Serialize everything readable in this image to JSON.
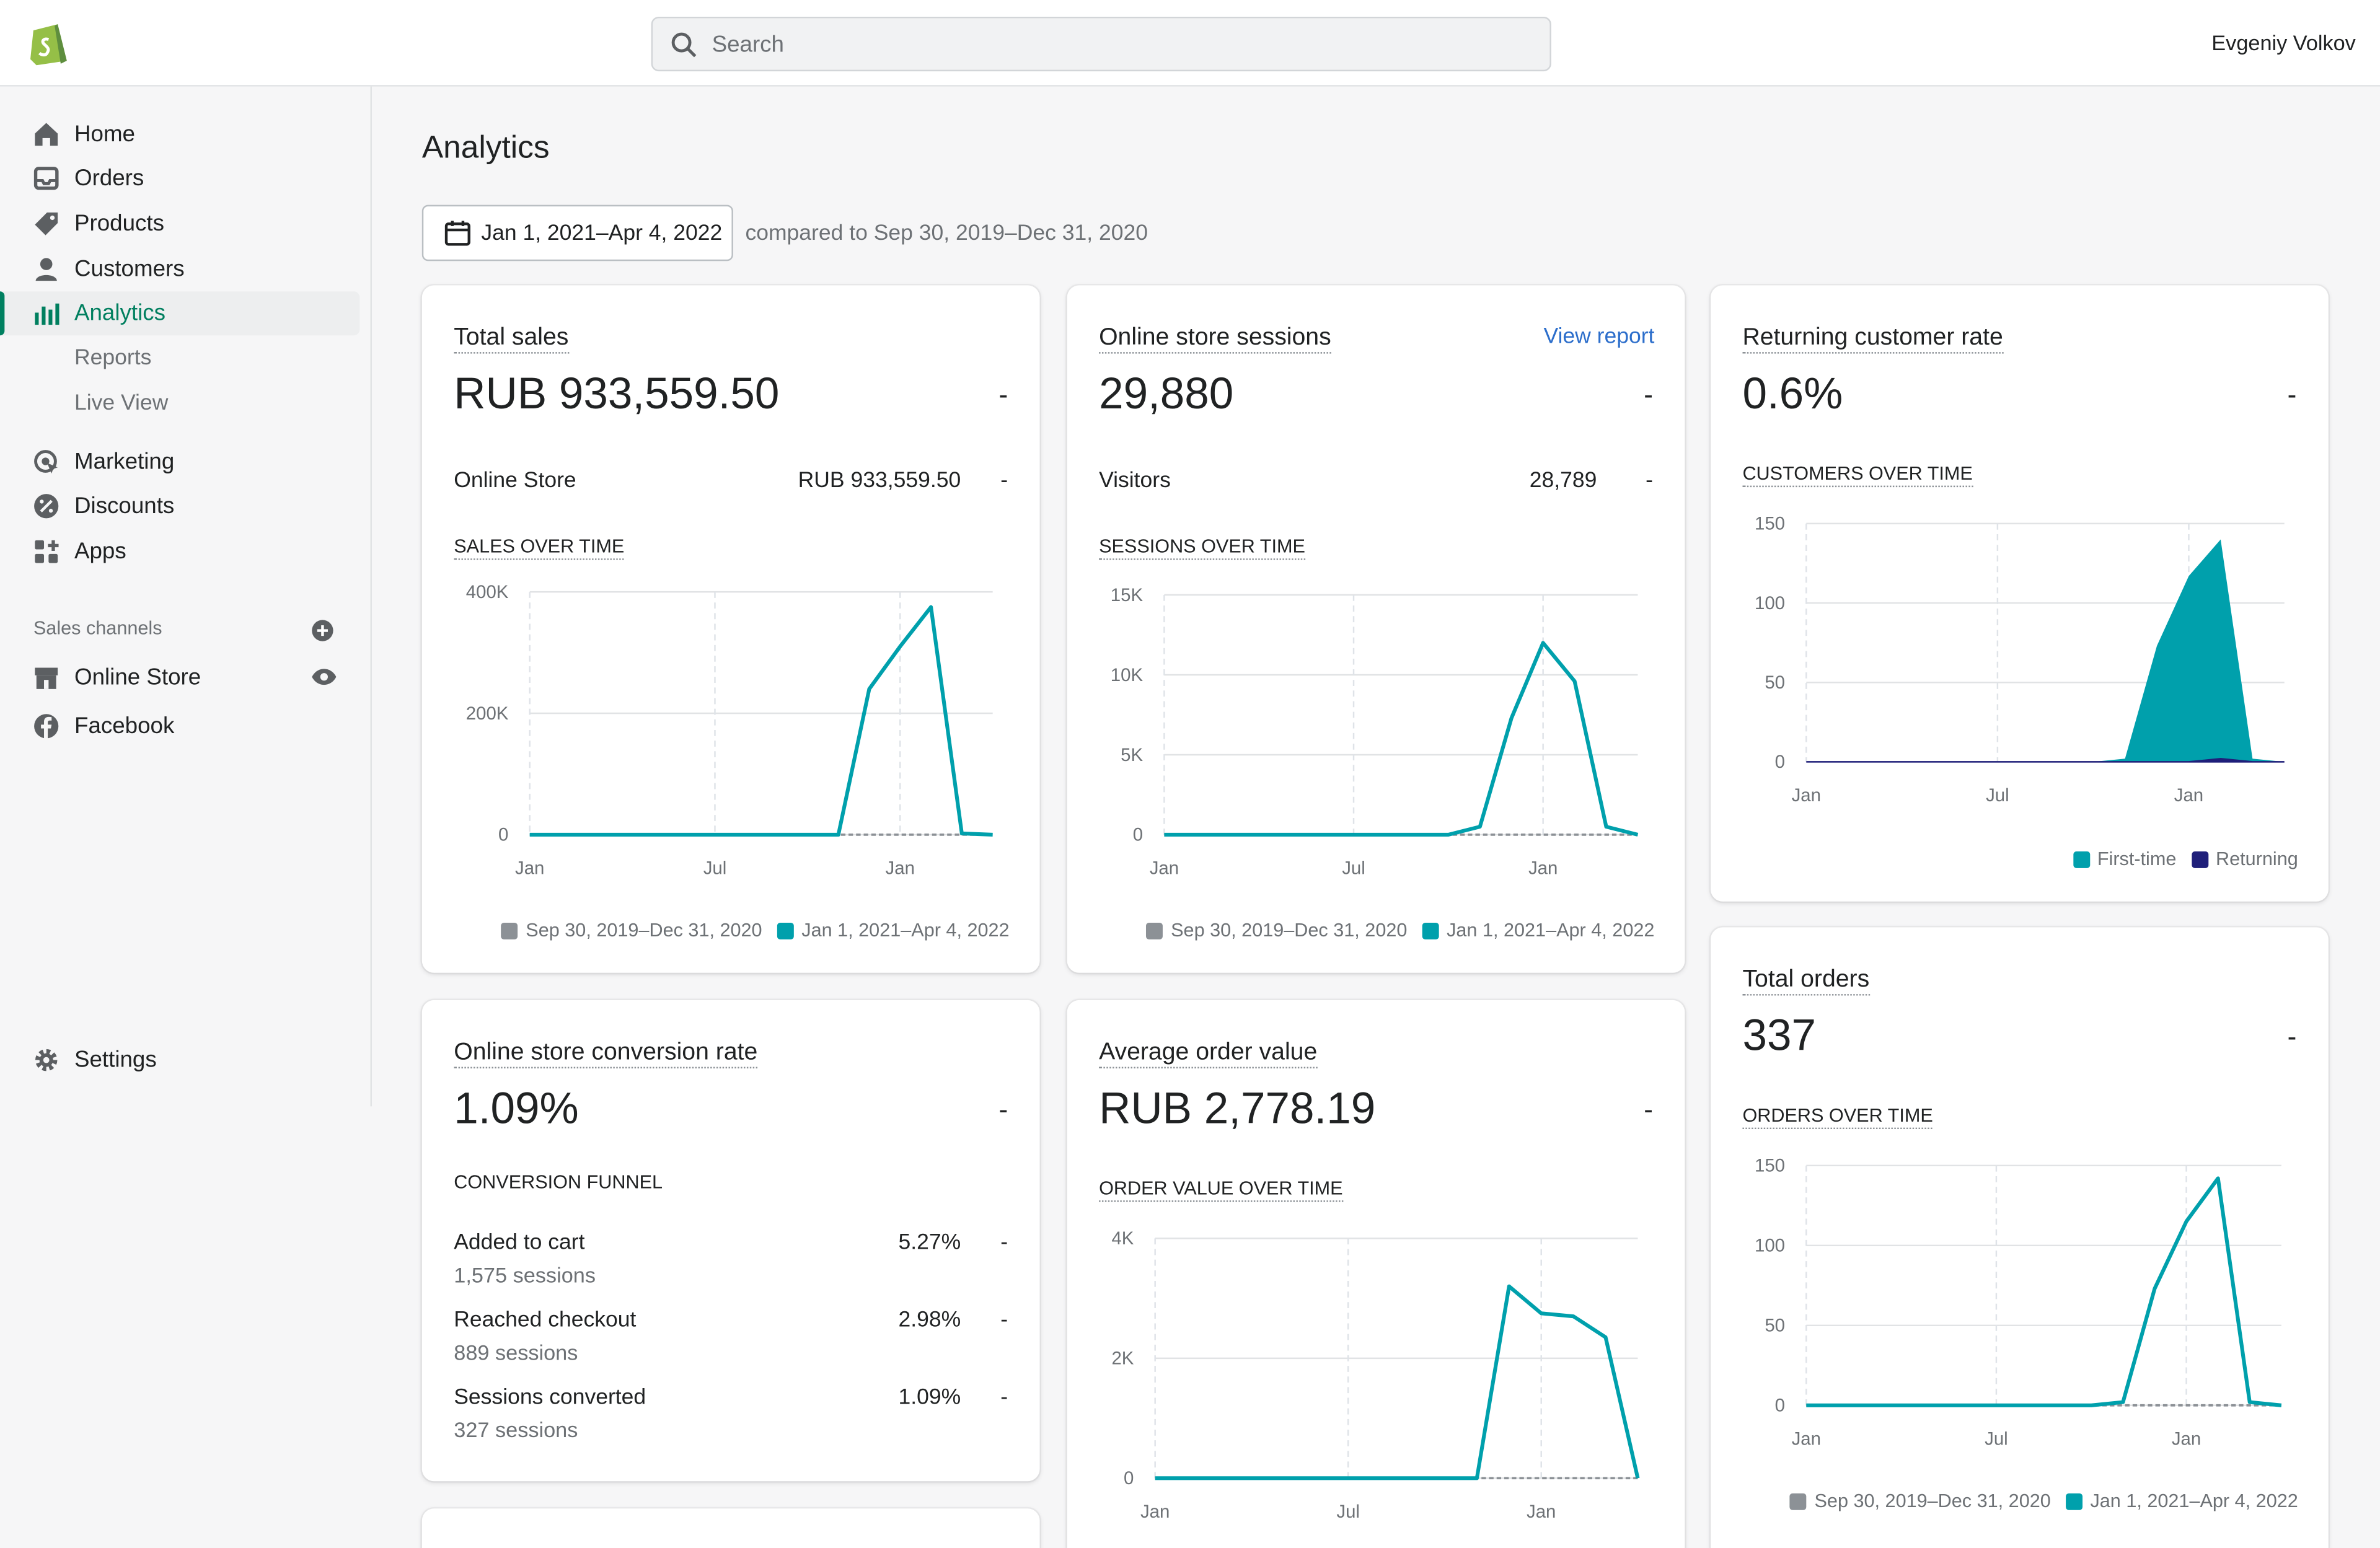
{
  "header": {
    "search_placeholder": "Search",
    "user_name": "Evgeniy Volkov"
  },
  "sidebar": {
    "items": [
      {
        "label": "Home",
        "icon": "home-icon"
      },
      {
        "label": "Orders",
        "icon": "orders-icon"
      },
      {
        "label": "Products",
        "icon": "tag-icon"
      },
      {
        "label": "Customers",
        "icon": "person-icon"
      },
      {
        "label": "Analytics",
        "icon": "bar-chart-icon",
        "active": true
      },
      {
        "label": "Reports"
      },
      {
        "label": "Live View"
      },
      {
        "label": "Marketing",
        "icon": "target-icon"
      },
      {
        "label": "Discounts",
        "icon": "discount-icon"
      },
      {
        "label": "Apps",
        "icon": "apps-icon"
      }
    ],
    "sales_channels_heading": "Sales channels",
    "channels": [
      {
        "label": "Online Store",
        "icon": "store-icon"
      },
      {
        "label": "Facebook",
        "icon": "facebook-icon"
      }
    ],
    "settings_label": "Settings"
  },
  "page": {
    "title": "Analytics",
    "date_range": "Jan 1, 2021–Apr 4, 2022",
    "compared_text": "compared to Sep 30, 2019–Dec 31, 2020"
  },
  "legend": {
    "previous": "Sep 30, 2019–Dec 31, 2020",
    "current": "Jan 1, 2021–Apr 4, 2022",
    "first_time": "First-time",
    "returning": "Returning"
  },
  "colors": {
    "current": "#00a0ac",
    "previous": "#8c9196",
    "returning": "#1f1f7a"
  },
  "dash": "-",
  "cards": {
    "total_sales": {
      "title": "Total sales",
      "value": "RUB 933,559.50",
      "row_label": "Online Store",
      "row_value": "RUB 933,559.50",
      "chart_title": "SALES OVER TIME"
    },
    "sessions": {
      "title": "Online store sessions",
      "link": "View report",
      "value": "29,880",
      "row_label": "Visitors",
      "row_value": "28,789",
      "chart_title": "SESSIONS OVER TIME"
    },
    "returning": {
      "title": "Returning customer rate",
      "value": "0.6%",
      "chart_title": "CUSTOMERS OVER TIME"
    },
    "conversion": {
      "title": "Online store conversion rate",
      "value": "1.09%",
      "funnel_title": "CONVERSION FUNNEL",
      "steps": [
        {
          "label": "Added to cart",
          "sessions": "1,575 sessions",
          "rate": "5.27%"
        },
        {
          "label": "Reached checkout",
          "sessions": "889 sessions",
          "rate": "2.98%"
        },
        {
          "label": "Sessions converted",
          "sessions": "327 sessions",
          "rate": "1.09%"
        }
      ]
    },
    "aov": {
      "title": "Average order value",
      "value": "RUB 2,778.19",
      "chart_title": "ORDER VALUE OVER TIME"
    },
    "orders": {
      "title": "Total orders",
      "value": "337",
      "chart_title": "ORDERS OVER TIME"
    }
  },
  "chart_data": [
    {
      "id": "sales",
      "type": "line",
      "x_tick_labels": [
        "Jan",
        "Jul",
        "Jan"
      ],
      "y_tick_labels": [
        "400K",
        "200K",
        "0"
      ],
      "ylim": [
        0,
        400000
      ],
      "series": [
        {
          "name": "Jan 1, 2021–Apr 4, 2022",
          "values": [
            0,
            0,
            0,
            0,
            0,
            0,
            0,
            0,
            0,
            0,
            0,
            240000,
            310000,
            375000,
            2000,
            0
          ]
        },
        {
          "name": "Sep 30, 2019–Dec 31, 2020",
          "values": [
            0,
            0,
            0,
            0,
            0,
            0,
            0,
            0,
            0,
            0,
            0,
            0,
            0,
            0,
            0,
            0
          ]
        }
      ]
    },
    {
      "id": "sessions",
      "type": "line",
      "x_tick_labels": [
        "Jan",
        "Jul",
        "Jan"
      ],
      "y_tick_labels": [
        "15K",
        "10K",
        "5K",
        "0"
      ],
      "ylim": [
        0,
        15000
      ],
      "series": [
        {
          "name": "Jan 1, 2021–Apr 4, 2022",
          "values": [
            0,
            0,
            0,
            0,
            0,
            0,
            0,
            0,
            0,
            0,
            500,
            7300,
            12000,
            9600,
            500,
            0
          ]
        },
        {
          "name": "Sep 30, 2019–Dec 31, 2020",
          "values": [
            0,
            0,
            0,
            0,
            0,
            0,
            0,
            0,
            0,
            0,
            0,
            0,
            0,
            0,
            0,
            0
          ]
        }
      ]
    },
    {
      "id": "customers",
      "type": "area",
      "x_tick_labels": [
        "Jan",
        "Jul",
        "Jan"
      ],
      "y_tick_labels": [
        "150",
        "100",
        "50",
        "0"
      ],
      "ylim": [
        0,
        150
      ],
      "series": [
        {
          "name": "First-time",
          "values": [
            0,
            0,
            0,
            0,
            0,
            0,
            0,
            0,
            0,
            0,
            2,
            73,
            117,
            140,
            2,
            0
          ]
        },
        {
          "name": "Returning",
          "values": [
            0,
            0,
            0,
            0,
            0,
            0,
            0,
            0,
            0,
            0,
            0,
            0,
            0,
            2,
            0,
            0
          ]
        }
      ]
    },
    {
      "id": "aov",
      "type": "line",
      "x_tick_labels": [
        "Jan",
        "Jul",
        "Jan"
      ],
      "y_tick_labels": [
        "4K",
        "2K",
        "0"
      ],
      "ylim": [
        0,
        4000
      ],
      "series": [
        {
          "name": "Jan 1, 2021–Apr 4, 2022",
          "values": [
            0,
            0,
            0,
            0,
            0,
            0,
            0,
            0,
            0,
            0,
            0,
            3200,
            2750,
            2700,
            2350,
            0
          ]
        },
        {
          "name": "Sep 30, 2019–Dec 31, 2020",
          "values": [
            0,
            0,
            0,
            0,
            0,
            0,
            0,
            0,
            0,
            0,
            0,
            0,
            0,
            0,
            0,
            0
          ]
        }
      ]
    },
    {
      "id": "orders",
      "type": "line",
      "x_tick_labels": [
        "Jan",
        "Jul",
        "Jan"
      ],
      "y_tick_labels": [
        "150",
        "100",
        "50",
        "0"
      ],
      "ylim": [
        0,
        150
      ],
      "series": [
        {
          "name": "Jan 1, 2021–Apr 4, 2022",
          "values": [
            0,
            0,
            0,
            0,
            0,
            0,
            0,
            0,
            0,
            0,
            2,
            73,
            115,
            142,
            2,
            0
          ]
        },
        {
          "name": "Sep 30, 2019–Dec 31, 2020",
          "values": [
            0,
            0,
            0,
            0,
            0,
            0,
            0,
            0,
            0,
            0,
            0,
            0,
            0,
            0,
            0,
            0
          ]
        }
      ]
    }
  ]
}
